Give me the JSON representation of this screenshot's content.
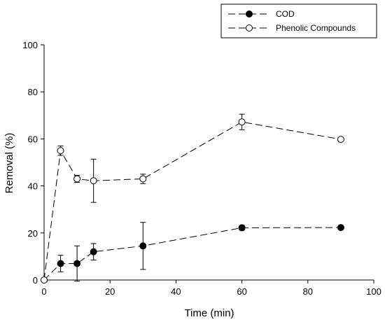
{
  "chart_data": {
    "type": "line",
    "title": "",
    "xlabel": "Time (min)",
    "ylabel": "Removal (%)",
    "xlim": [
      0,
      100
    ],
    "ylim": [
      0,
      100
    ],
    "xticks": [
      "0",
      "20",
      "40",
      "60",
      "80",
      "100"
    ],
    "yticks": [
      "0",
      "20",
      "40",
      "60",
      "80",
      "100"
    ],
    "grid": false,
    "legend_position": "top-right",
    "series": [
      {
        "name": "COD",
        "marker": "filled-circle",
        "line_style": "dashed",
        "color": "#000000",
        "x": [
          0,
          5,
          10,
          15,
          30,
          60,
          90
        ],
        "y": [
          0,
          7,
          7,
          12,
          14.5,
          22.2,
          22.3
        ],
        "error": [
          0,
          3.5,
          7.5,
          3.5,
          10,
          1,
          0.5
        ]
      },
      {
        "name": "Phenolic Compounds",
        "marker": "open-circle",
        "line_style": "dashed",
        "color": "#000000",
        "x": [
          0,
          5,
          10,
          15,
          30,
          60,
          90
        ],
        "y": [
          0,
          55,
          43,
          42.2,
          43,
          67.2,
          59.8
        ],
        "error": [
          0,
          2,
          1.5,
          9.2,
          2,
          3.3,
          0.4
        ]
      }
    ]
  }
}
